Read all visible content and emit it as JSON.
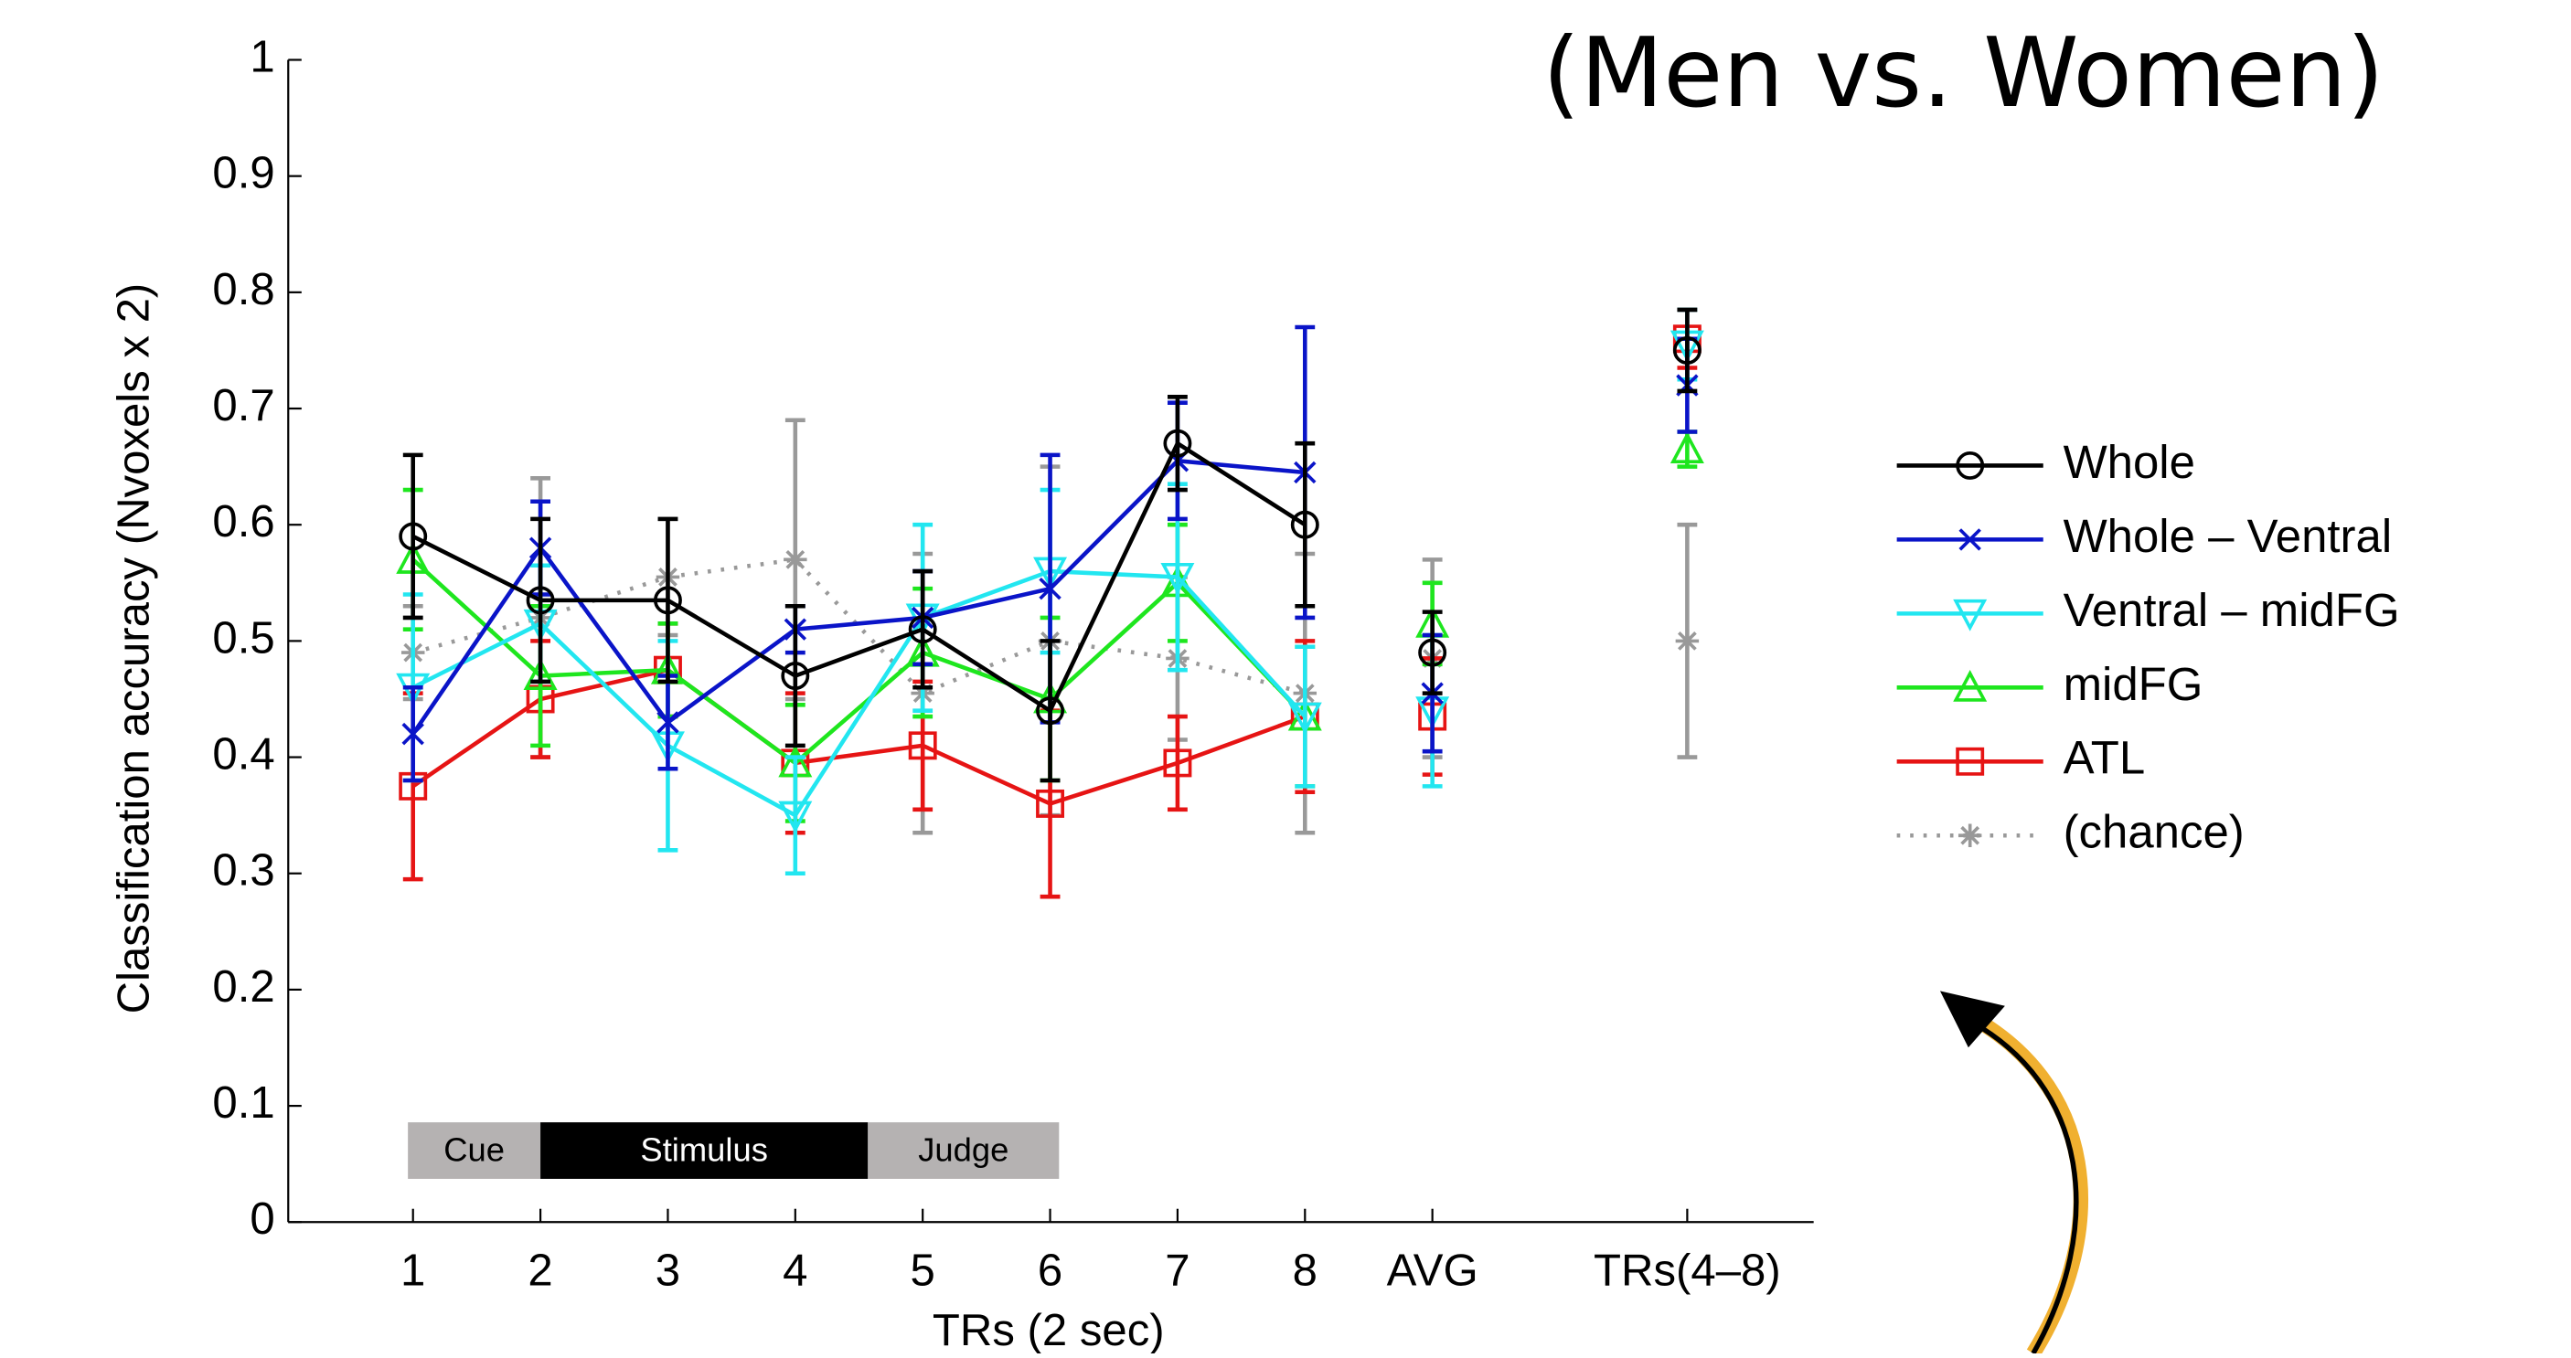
{
  "chart_data": {
    "type": "line",
    "title": "(Men vs. Women)",
    "xlabel": "TRs (2 sec)",
    "ylabel": "Classification accuracy (Nvoxels x 2)",
    "categories": [
      "1",
      "2",
      "3",
      "4",
      "5",
      "6",
      "7",
      "8",
      "AVG",
      null,
      "TRs(4–8)"
    ],
    "series": [
      {
        "name": "Whole",
        "color": "#000000",
        "marker": "circle",
        "linestyle": "solid",
        "values": [
          0.59,
          0.535,
          0.535,
          0.47,
          0.51,
          0.44,
          0.67,
          0.6,
          0.49,
          null,
          0.75
        ],
        "errors": [
          0.07,
          0.07,
          0.07,
          0.06,
          0.05,
          0.06,
          0.04,
          0.07,
          0.035,
          null,
          0.035
        ]
      },
      {
        "name": "Whole – Ventral",
        "color": "#0a14c8",
        "marker": "x",
        "linestyle": "solid",
        "values": [
          0.42,
          0.58,
          0.43,
          0.51,
          0.52,
          0.545,
          0.655,
          0.645,
          0.455,
          null,
          0.72
        ],
        "errors": [
          0.04,
          0.04,
          0.04,
          0.02,
          0.04,
          0.115,
          0.05,
          0.125,
          0.05,
          null,
          0.04
        ]
      },
      {
        "name": "Ventral – midFG",
        "color": "#22e6f0",
        "marker": "triangle-down",
        "linestyle": "solid",
        "values": [
          0.46,
          0.515,
          0.41,
          0.35,
          0.52,
          0.56,
          0.555,
          0.435,
          0.44,
          null,
          0.755
        ],
        "errors": [
          0.08,
          0.05,
          0.09,
          0.05,
          0.08,
          0.07,
          0.08,
          0.06,
          0.065,
          null,
          0.03
        ]
      },
      {
        "name": "midFG",
        "color": "#1ee61e",
        "marker": "triangle-up",
        "linestyle": "solid",
        "values": [
          0.57,
          0.47,
          0.475,
          0.395,
          0.49,
          0.45,
          0.55,
          0.435,
          0.515,
          null,
          0.665
        ],
        "errors": [
          0.06,
          0.06,
          0.04,
          0.05,
          0.055,
          0.07,
          0.05,
          0.06,
          0.035,
          null,
          0.015
        ]
      },
      {
        "name": "ATL",
        "color": "#e61414",
        "marker": "square",
        "linestyle": "solid",
        "values": [
          0.375,
          0.45,
          0.475,
          0.395,
          0.41,
          0.36,
          0.395,
          0.435,
          0.435,
          null,
          0.76
        ],
        "errors": [
          0.08,
          0.05,
          0.04,
          0.06,
          0.055,
          0.08,
          0.04,
          0.065,
          0.05,
          null,
          0.025
        ]
      },
      {
        "name": "(chance)",
        "color": "#999999",
        "marker": "asterisk",
        "linestyle": "dotted",
        "values": [
          0.49,
          0.52,
          0.555,
          0.57,
          0.455,
          0.5,
          0.485,
          0.455,
          0.485,
          null,
          0.5
        ],
        "errors": [
          0.04,
          0.12,
          0.05,
          0.12,
          0.12,
          0.15,
          0.07,
          0.12,
          0.085,
          null,
          0.1
        ]
      }
    ],
    "ylim": [
      0,
      1
    ],
    "yticks": [
      0,
      0.1,
      0.2,
      0.3,
      0.4,
      0.5,
      0.6,
      0.7,
      0.8,
      0.9,
      1
    ],
    "legend": "right",
    "annotations": [
      "Cue",
      "Stimulus",
      "Judge"
    ]
  }
}
